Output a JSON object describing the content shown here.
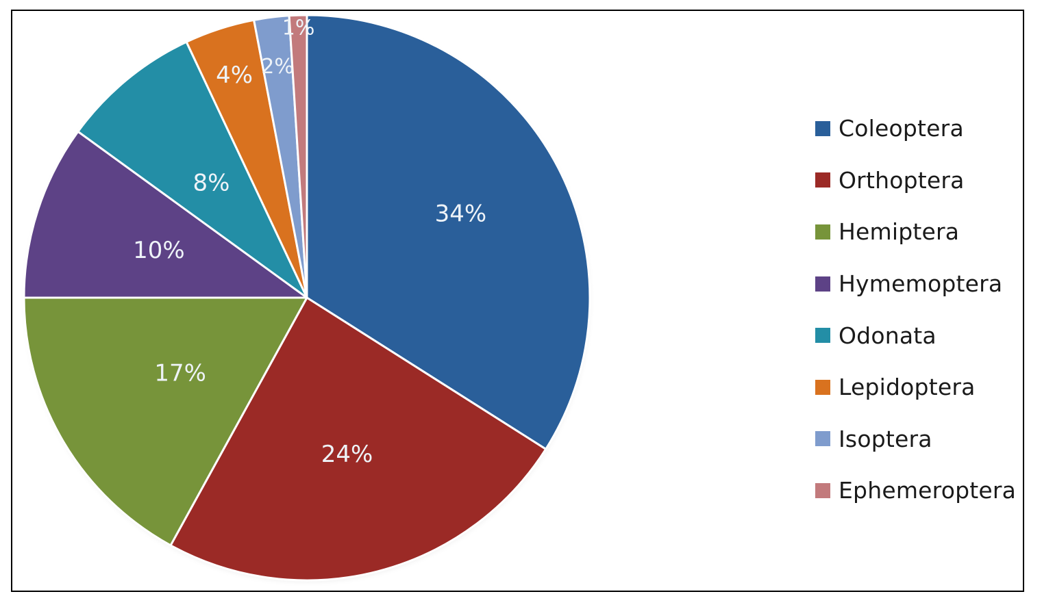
{
  "chart_data": {
    "type": "pie",
    "title": "",
    "start_angle_deg": 0,
    "direction": "clockwise",
    "categories": [
      "Coleoptera",
      "Orthoptera",
      "Hemiptera",
      "Hymemoptera",
      "Odonata",
      "Lepidoptera",
      "Isoptera",
      "Ephemeroptera"
    ],
    "values": [
      34,
      24,
      17,
      10,
      8,
      4,
      2,
      1
    ],
    "labels": [
      "34%",
      "24%",
      "17%",
      "10%",
      "8%",
      "4%",
      "2%",
      "1%"
    ],
    "colors": [
      "#2a5f9a",
      "#9b2a26",
      "#77943a",
      "#5d4286",
      "#238ea6",
      "#d9721f",
      "#7f9ccd",
      "#c27a7c"
    ],
    "legend_position": "right",
    "unit": "%"
  },
  "legend": {
    "items": [
      {
        "label": "Coleoptera",
        "color": "#2a5f9a"
      },
      {
        "label": "Orthoptera",
        "color": "#9b2a26"
      },
      {
        "label": "Hemiptera",
        "color": "#77943a"
      },
      {
        "label": "Hymemoptera",
        "color": "#5d4286"
      },
      {
        "label": "Odonata",
        "color": "#238ea6"
      },
      {
        "label": "Lepidoptera",
        "color": "#d9721f"
      },
      {
        "label": "Isoptera",
        "color": "#7f9ccd"
      },
      {
        "label": "Ephemeroptera",
        "color": "#c27a7c"
      }
    ]
  }
}
